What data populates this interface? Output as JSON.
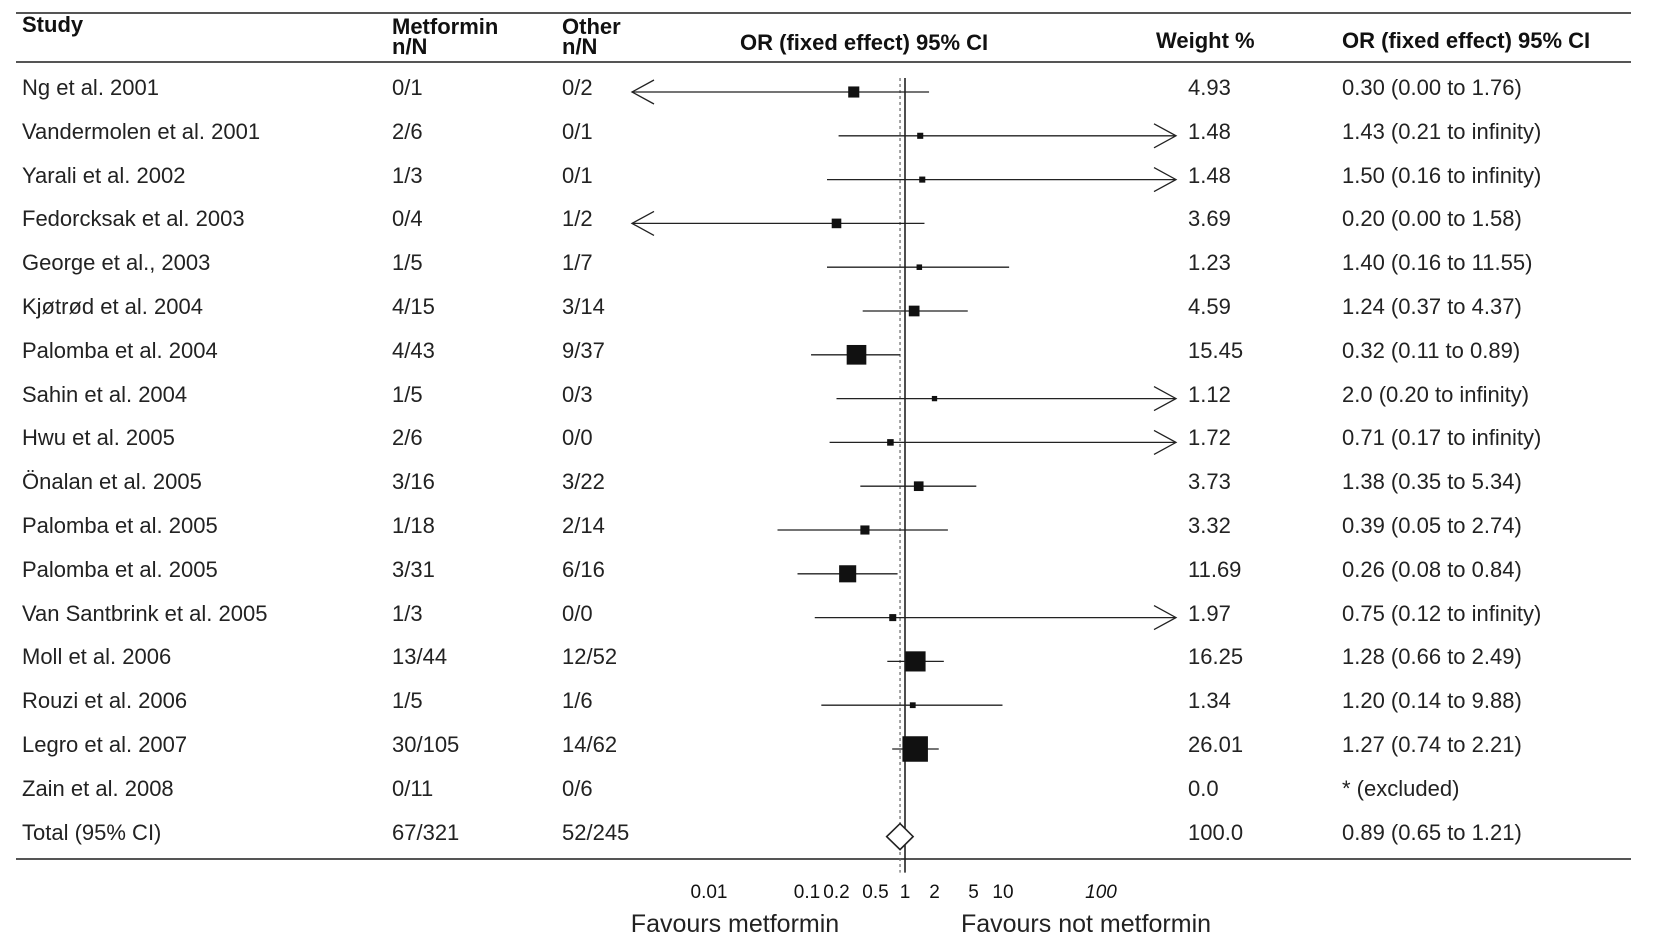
{
  "headers": {
    "study": "Study",
    "metformin": "Metformin",
    "metformin_sub": "n/N",
    "other": "Other",
    "other_sub": "n/N",
    "plot": "OR (fixed effect) 95% CI",
    "weight": "Weight %",
    "or": "OR (fixed effect) 95% CI"
  },
  "chart_data": {
    "type": "forest",
    "x_scale": "log",
    "xlim": [
      0.01,
      100
    ],
    "reference_line": 1,
    "x_ticks": [
      "0.01",
      "0.1",
      "0.2",
      "0.5",
      "1",
      "2",
      "5",
      "10",
      "100"
    ],
    "favours_left": "Favours metformin",
    "favours_right": "Favours not metformin",
    "rows": [
      {
        "study": "Ng et al. 2001",
        "metformin": "0/1",
        "other": "0/2",
        "weight": "4.93",
        "or_text": "0.30 (0.00 to 1.76)",
        "or": 0.3,
        "lo": 0.0,
        "hi": 1.76,
        "w": 4.93
      },
      {
        "study": "Vandermolen et al. 2001",
        "metformin": "2/6",
        "other": "0/1",
        "weight": "1.48",
        "or_text": "1.43 (0.21 to infinity)",
        "or": 1.43,
        "lo": 0.21,
        "hi": null,
        "w": 1.48
      },
      {
        "study": "Yarali et al. 2002",
        "metformin": "1/3",
        "other": "0/1",
        "weight": "1.48",
        "or_text": "1.50 (0.16 to infinity)",
        "or": 1.5,
        "lo": 0.16,
        "hi": null,
        "w": 1.48
      },
      {
        "study": "Fedorcksak et al. 2003",
        "metformin": "0/4",
        "other": "1/2",
        "weight": "3.69",
        "or_text": "0.20 (0.00 to 1.58)",
        "or": 0.2,
        "lo": 0.0,
        "hi": 1.58,
        "w": 3.69
      },
      {
        "study": "George et al., 2003",
        "metformin": "1/5",
        "other": "1/7",
        "weight": "1.23",
        "or_text": "1.40 (0.16 to 11.55)",
        "or": 1.4,
        "lo": 0.16,
        "hi": 11.55,
        "w": 1.23
      },
      {
        "study": "Kjøtrød et al. 2004",
        "metformin": "4/15",
        "other": "3/14",
        "weight": "4.59",
        "or_text": "1.24 (0.37 to 4.37)",
        "or": 1.24,
        "lo": 0.37,
        "hi": 4.37,
        "w": 4.59
      },
      {
        "study": "Palomba et al. 2004",
        "metformin": "4/43",
        "other": "9/37",
        "weight": "15.45",
        "or_text": "0.32 (0.11 to 0.89)",
        "or": 0.32,
        "lo": 0.11,
        "hi": 0.89,
        "w": 15.45
      },
      {
        "study": "Sahin et al. 2004",
        "metformin": "1/5",
        "other": "0/3",
        "weight": "1.12",
        "or_text": "2.0 (0.20 to infinity)",
        "or": 2.0,
        "lo": 0.2,
        "hi": null,
        "w": 1.12
      },
      {
        "study": "Hwu et al. 2005",
        "metformin": "2/6",
        "other": "0/0",
        "weight": "1.72",
        "or_text": "0.71 (0.17 to infinity)",
        "or": 0.71,
        "lo": 0.17,
        "hi": null,
        "w": 1.72
      },
      {
        "study": "Önalan et al. 2005",
        "metformin": "3/16",
        "other": "3/22",
        "weight": "3.73",
        "or_text": "1.38 (0.35 to 5.34)",
        "or": 1.38,
        "lo": 0.35,
        "hi": 5.34,
        "w": 3.73
      },
      {
        "study": "Palomba et al. 2005",
        "metformin": "1/18",
        "other": "2/14",
        "weight": "3.32",
        "or_text": "0.39 (0.05 to 2.74)",
        "or": 0.39,
        "lo": 0.05,
        "hi": 2.74,
        "w": 3.32
      },
      {
        "study": "Palomba et al. 2005",
        "metformin": "3/31",
        "other": "6/16",
        "weight": "11.69",
        "or_text": "0.26 (0.08 to 0.84)",
        "or": 0.26,
        "lo": 0.08,
        "hi": 0.84,
        "w": 11.69
      },
      {
        "study": "Van Santbrink et al. 2005",
        "metformin": "1/3",
        "other": "0/0",
        "weight": "1.97",
        "or_text": "0.75 (0.12 to infinity)",
        "or": 0.75,
        "lo": 0.12,
        "hi": null,
        "w": 1.97
      },
      {
        "study": "Moll et al. 2006",
        "metformin": "13/44",
        "other": "12/52",
        "weight": "16.25",
        "or_text": "1.28 (0.66 to 2.49)",
        "or": 1.28,
        "lo": 0.66,
        "hi": 2.49,
        "w": 16.25
      },
      {
        "study": "Rouzi et al. 2006",
        "metformin": "1/5",
        "other": "1/6",
        "weight": "1.34",
        "or_text": "1.20 (0.14 to 9.88)",
        "or": 1.2,
        "lo": 0.14,
        "hi": 9.88,
        "w": 1.34
      },
      {
        "study": "Legro et al. 2007",
        "metformin": "30/105",
        "other": "14/62",
        "weight": "26.01",
        "or_text": "1.27 (0.74 to 2.21)",
        "or": 1.27,
        "lo": 0.74,
        "hi": 2.21,
        "w": 26.01
      },
      {
        "study": "Zain et al. 2008",
        "metformin": "0/11",
        "other": "0/6",
        "weight": "0.0",
        "or_text": "* (excluded)",
        "or": null,
        "lo": null,
        "hi": null,
        "w": 0.0
      },
      {
        "study": "Total (95% CI)",
        "metformin": "67/321",
        "other": "52/245",
        "weight": "100.0",
        "or_text": "0.89 (0.65 to 1.21)",
        "or": 0.89,
        "lo": 0.65,
        "hi": 1.21,
        "w": 100.0,
        "is_total": true
      }
    ]
  }
}
